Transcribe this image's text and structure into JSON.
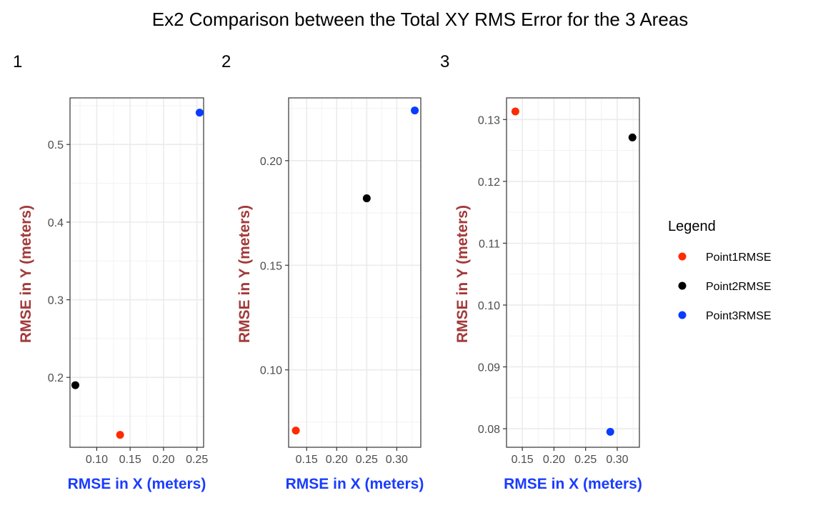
{
  "title": "Ex2 Comparison between the Total XY RMS Error for the 3 Areas",
  "colors": {
    "Point1RMSE": "#ff2a00",
    "Point2RMSE": "#000000",
    "Point3RMSE": "#0a3cff",
    "xlabel": "#1a3cff",
    "ylabel": "#a33a3a"
  },
  "legend": {
    "title": "Legend",
    "placement": "right",
    "entries": [
      "Point1RMSE",
      "Point2RMSE",
      "Point3RMSE"
    ]
  },
  "chart_data": [
    {
      "type": "scatter",
      "tag": "1",
      "xlabel": "RMSE in X (meters)",
      "ylabel": "RMSE in Y (meters)",
      "xlim": [
        0.06,
        0.26
      ],
      "ylim": [
        0.11,
        0.56
      ],
      "xticks": [
        0.1,
        0.15,
        0.2,
        0.25
      ],
      "xtick_labels": [
        "0.10",
        "0.15",
        "0.20",
        "0.25"
      ],
      "yticks": [
        0.2,
        0.3,
        0.4,
        0.5
      ],
      "ytick_labels": [
        "0.2",
        "0.3",
        "0.4",
        "0.5"
      ],
      "grid": true,
      "points": [
        {
          "series": "Point1RMSE",
          "x": 0.135,
          "y": 0.126
        },
        {
          "series": "Point2RMSE",
          "x": 0.068,
          "y": 0.19
        },
        {
          "series": "Point3RMSE",
          "x": 0.254,
          "y": 0.541
        }
      ]
    },
    {
      "type": "scatter",
      "tag": "2",
      "xlabel": "RMSE in X (meters)",
      "ylabel": "RMSE in Y (meters)",
      "xlim": [
        0.12,
        0.34
      ],
      "ylim": [
        0.063,
        0.23
      ],
      "xticks": [
        0.15,
        0.2,
        0.25,
        0.3
      ],
      "xtick_labels": [
        "0.15",
        "0.20",
        "0.25",
        "0.30"
      ],
      "yticks": [
        0.1,
        0.15,
        0.2
      ],
      "ytick_labels": [
        "0.10",
        "0.15",
        "0.20"
      ],
      "grid": true,
      "points": [
        {
          "series": "Point1RMSE",
          "x": 0.132,
          "y": 0.071
        },
        {
          "series": "Point2RMSE",
          "x": 0.25,
          "y": 0.182
        },
        {
          "series": "Point3RMSE",
          "x": 0.33,
          "y": 0.224
        }
      ]
    },
    {
      "type": "scatter",
      "tag": "3",
      "xlabel": "RMSE in X (meters)",
      "ylabel": "RMSE in Y (meters)",
      "xlim": [
        0.125,
        0.335
      ],
      "ylim": [
        0.077,
        0.1335
      ],
      "xticks": [
        0.15,
        0.2,
        0.25,
        0.3
      ],
      "xtick_labels": [
        "0.15",
        "0.20",
        "0.25",
        "0.30"
      ],
      "yticks": [
        0.08,
        0.09,
        0.1,
        0.11,
        0.12,
        0.13
      ],
      "ytick_labels": [
        "0.08",
        "0.09",
        "0.10",
        "0.11",
        "0.12",
        "0.13"
      ],
      "grid": true,
      "points": [
        {
          "series": "Point1RMSE",
          "x": 0.139,
          "y": 0.1313
        },
        {
          "series": "Point2RMSE",
          "x": 0.324,
          "y": 0.1271
        },
        {
          "series": "Point3RMSE",
          "x": 0.289,
          "y": 0.0795
        }
      ]
    }
  ]
}
